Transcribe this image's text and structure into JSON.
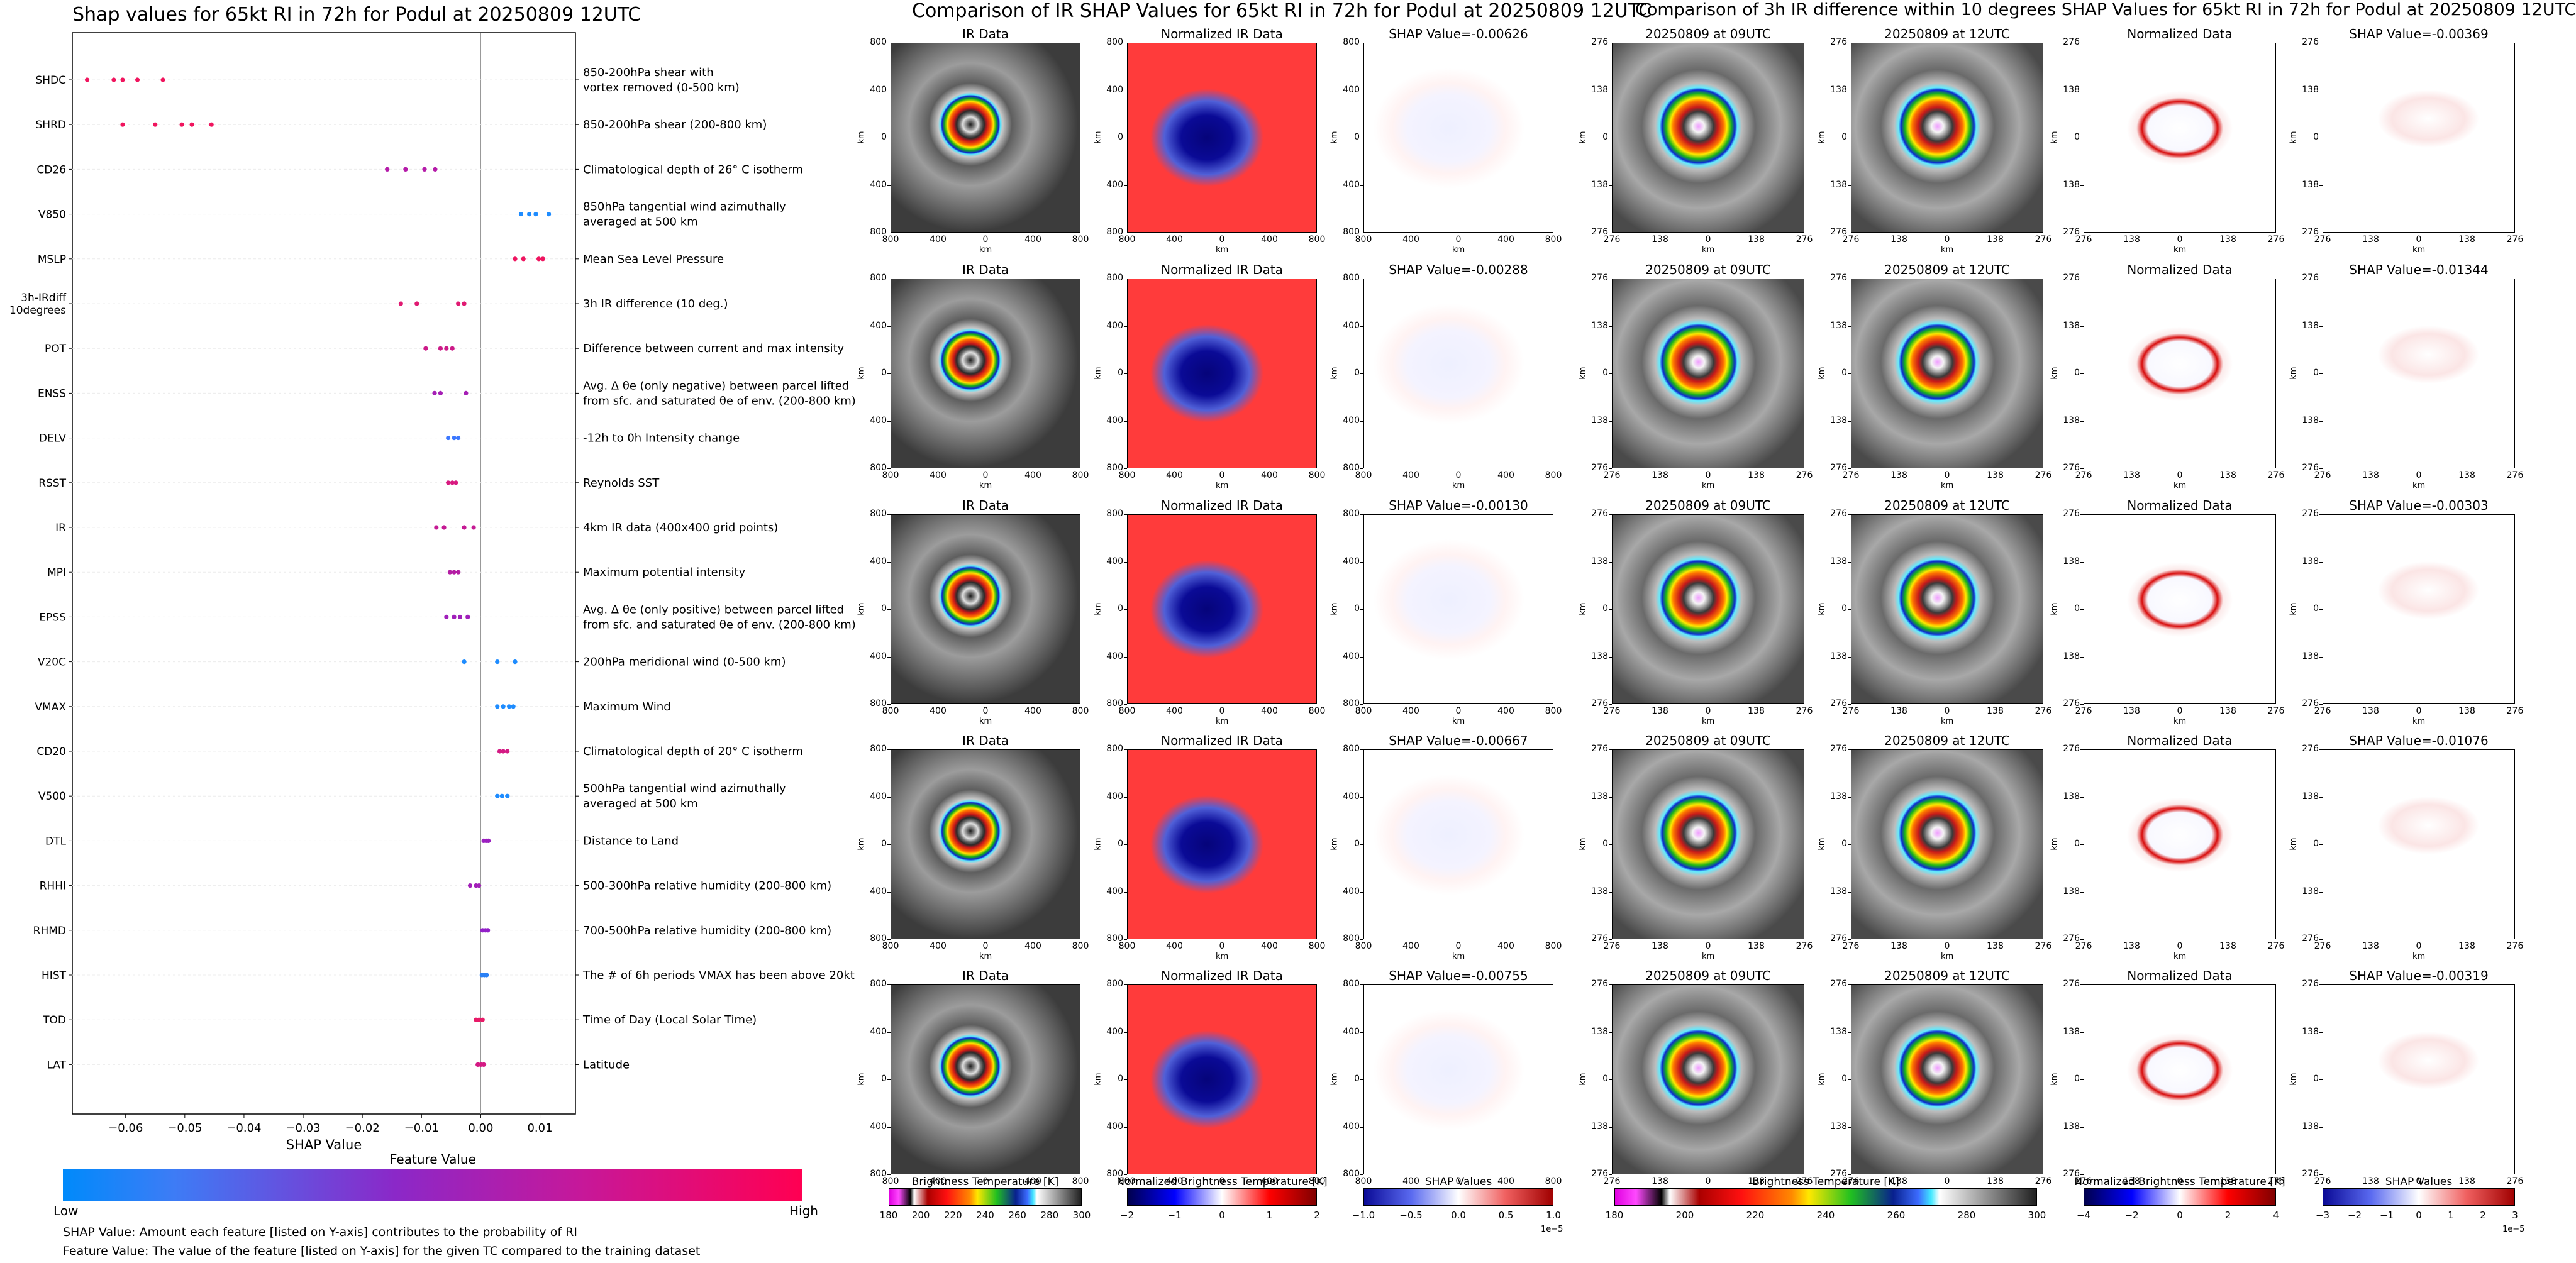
{
  "left_panel": {
    "title": "Shap values for 65kt RI in 72h for Podul at 20250809 12UTC",
    "xlabel": "SHAP Value",
    "colorbar_title": "Feature Value",
    "colorbar_low": "Low",
    "colorbar_high": "High",
    "note1": "SHAP Value: Amount each feature [listed on Y-axis] contributes to the probability of RI",
    "note2": "Feature Value: The value of the feature [listed on Y-axis] for the given TC compared to the training dataset"
  },
  "chart_data": {
    "type": "scatter",
    "title": "Shap values for 65kt RI in 72h for Podul at 20250809 12UTC",
    "xlabel": "SHAP Value",
    "xlim": [
      -0.069,
      0.016
    ],
    "xticks": [
      -0.06,
      -0.05,
      -0.04,
      -0.03,
      -0.02,
      -0.01,
      0.0,
      0.01
    ],
    "xticklabels": [
      "−0.06",
      "−0.05",
      "−0.04",
      "−0.03",
      "−0.02",
      "−0.01",
      "0.00",
      "0.01"
    ],
    "features": [
      {
        "name": "SHDC",
        "desc": [
          "850-200hPa shear with",
          "vortex removed (0-500 km)"
        ],
        "color": "#f0155e",
        "values": [
          -0.0665,
          -0.062,
          -0.0605,
          -0.058,
          -0.0537
        ]
      },
      {
        "name": "SHRD",
        "desc": [
          "850-200hPa shear (200-800 km)"
        ],
        "color": "#f0155e",
        "values": [
          -0.0605,
          -0.055,
          -0.0505,
          -0.0488,
          -0.0455
        ]
      },
      {
        "name": "CD26",
        "desc": [
          "Climatological depth of 26° C isotherm"
        ],
        "color": "#b51ba9",
        "values": [
          -0.0158,
          -0.0127,
          -0.0095,
          -0.0077
        ]
      },
      {
        "name": "V850",
        "desc": [
          "850hPa tangential wind azimuthally",
          "averaged at 500 km"
        ],
        "color": "#1e8cff",
        "values": [
          0.0068,
          0.0082,
          0.0093,
          0.0115
        ]
      },
      {
        "name": "MSLP",
        "desc": [
          "Mean Sea Level Pressure"
        ],
        "color": "#ef1560",
        "values": [
          0.0058,
          0.0072,
          0.0098,
          0.0105
        ]
      },
      {
        "name": "3h-IRdiff\n10degrees",
        "desc": [
          "3h IR difference (10 deg.)"
        ],
        "color": "#e01a72",
        "values": [
          -0.0135,
          -0.0108,
          -0.0038,
          -0.0028
        ]
      },
      {
        "name": "POT",
        "desc": [
          "Difference between current and max intensity"
        ],
        "color": "#cc1a88",
        "values": [
          -0.0093,
          -0.0068,
          -0.0058,
          -0.0048
        ]
      },
      {
        "name": "ENSS",
        "desc": [
          "Avg. Δ θe (only negative) between parcel lifted",
          "from sfc. and saturated θe of env. (200-800 km)"
        ],
        "color": "#a51fb5",
        "values": [
          -0.0078,
          -0.0068,
          -0.0025
        ]
      },
      {
        "name": "DELV",
        "desc": [
          "-12h to 0h Intensity change"
        ],
        "color": "#3c78ff",
        "values": [
          -0.0055,
          -0.0045,
          -0.0038
        ]
      },
      {
        "name": "RSST",
        "desc": [
          "Reynolds SST"
        ],
        "color": "#d81a80",
        "values": [
          -0.0055,
          -0.0048,
          -0.0042
        ]
      },
      {
        "name": "IR",
        "desc": [
          "4km IR data (400x400 grid points)"
        ],
        "color": "#c51a94",
        "values": [
          -0.0075,
          -0.0062,
          -0.0028,
          -0.0012
        ]
      },
      {
        "name": "MPI",
        "desc": [
          "Maximum potential intensity"
        ],
        "color": "#b41da4",
        "values": [
          -0.0052,
          -0.0045,
          -0.0038
        ]
      },
      {
        "name": "EPSS",
        "desc": [
          "Avg. Δ θe (only positive) between parcel lifted",
          "from sfc. and saturated θe of env. (200-800 km)"
        ],
        "color": "#a01fba",
        "values": [
          -0.0058,
          -0.0045,
          -0.0035,
          -0.0022
        ]
      },
      {
        "name": "V20C",
        "desc": [
          "200hPa meridional wind (0-500 km)"
        ],
        "color": "#1e8cff",
        "values": [
          -0.0028,
          0.0028,
          0.0058
        ]
      },
      {
        "name": "VMAX",
        "desc": [
          "Maximum Wind"
        ],
        "color": "#1e8cff",
        "values": [
          0.0028,
          0.0038,
          0.0048,
          0.0055
        ]
      },
      {
        "name": "CD20",
        "desc": [
          "Climatological depth of 20° C isotherm"
        ],
        "color": "#d41a84",
        "values": [
          0.0032,
          0.0038,
          0.0045
        ]
      },
      {
        "name": "V500",
        "desc": [
          "500hPa tangential wind azimuthally",
          "averaged at 500 km"
        ],
        "color": "#1e8cff",
        "values": [
          0.0028,
          0.0036,
          0.0045
        ]
      },
      {
        "name": "DTL",
        "desc": [
          "Distance to Land"
        ],
        "color": "#9b1fc0",
        "values": [
          0.0005,
          0.0009,
          0.0013
        ]
      },
      {
        "name": "RHHI",
        "desc": [
          "500-300hPa relative humidity (200-800 km)"
        ],
        "color": "#a21fb8",
        "values": [
          -0.0018,
          -0.0008,
          -0.0003
        ]
      },
      {
        "name": "RHMD",
        "desc": [
          "700-500hPa relative humidity (200-800 km)"
        ],
        "color": "#9220c8",
        "values": [
          0.0003,
          0.0008,
          0.0012
        ]
      },
      {
        "name": "HIST",
        "desc": [
          "The # of 6h periods VMAX has been above 20kt"
        ],
        "color": "#2a80f5",
        "values": [
          0.0002,
          0.0006,
          0.001
        ]
      },
      {
        "name": "TOD",
        "desc": [
          "Time of Day (Local Solar Time)"
        ],
        "color": "#e81a68",
        "values": [
          -0.0008,
          -0.0003,
          0.0003
        ]
      },
      {
        "name": "LAT",
        "desc": [
          "Latitude"
        ],
        "color": "#d41a84",
        "values": [
          -0.0005,
          0.0,
          0.0005
        ]
      }
    ],
    "legend": {
      "title": "Feature Value",
      "low": "Low",
      "high": "High",
      "placement": "bottom"
    },
    "grid": false
  },
  "middle_section": {
    "title": "Comparison of IR SHAP Values for 65kt RI in 72h for Podul at 20250809 12UTC",
    "col_titles": [
      "IR Data",
      "Normalized IR Data"
    ],
    "shap_values": [
      "SHAP Value=-0.00626",
      "SHAP Value=-0.00288",
      "SHAP Value=-0.00130",
      "SHAP Value=-0.00667",
      "SHAP Value=-0.00755"
    ],
    "axis_label": "km",
    "ticks": [
      "800",
      "400",
      "0",
      "400",
      "800"
    ],
    "colorbars": [
      {
        "label": "Brightness Temperature [K]",
        "ticks": [
          "180",
          "200",
          "220",
          "240",
          "260",
          "280",
          "300"
        ],
        "offset": ""
      },
      {
        "label": "Normalized Brightness Temperature [K]",
        "ticks": [
          "−2",
          "−1",
          "0",
          "1",
          "2"
        ],
        "offset": ""
      },
      {
        "label": "SHAP Values",
        "ticks": [
          "−1.0",
          "−0.5",
          "0.0",
          "0.5",
          "1.0"
        ],
        "offset": "1e−5"
      }
    ]
  },
  "right_section": {
    "title": "Comparison of 3h IR difference within 10 degrees SHAP Values for 65kt RI in 72h for Podul at 20250809 12UTC",
    "col_titles": [
      "20250809 at 09UTC",
      "20250809 at 12UTC",
      "Normalized Data"
    ],
    "shap_values": [
      "SHAP Value=-0.00369",
      "SHAP Value=-0.01344",
      "SHAP Value=-0.00303",
      "SHAP Value=-0.01076",
      "SHAP Value=-0.00319"
    ],
    "axis_label": "km",
    "ticks": [
      "276",
      "138",
      "0",
      "138",
      "276"
    ],
    "colorbars": [
      {
        "label": "Brightness Temperature [K]",
        "ticks": [
          "180",
          "200",
          "220",
          "240",
          "260",
          "280",
          "300"
        ],
        "offset": ""
      },
      {
        "label": "Normalized Brightness Temperature [K]",
        "ticks": [
          "−4",
          "−2",
          "0",
          "2",
          "4"
        ],
        "offset": ""
      },
      {
        "label": "SHAP Values",
        "ticks": [
          "−3",
          "−2",
          "−1",
          "0",
          "1",
          "2",
          "3"
        ],
        "offset": "1e−5"
      }
    ]
  },
  "colors": {
    "feature_low": "#008afb",
    "feature_mid": "#8b28c8",
    "feature_high": "#ff0052"
  }
}
